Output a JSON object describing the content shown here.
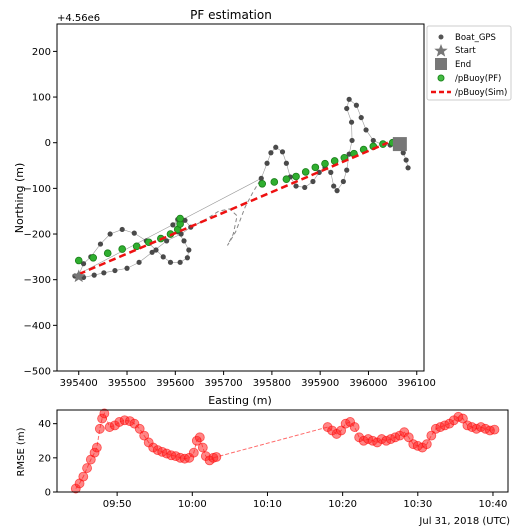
{
  "chart_data": [
    {
      "type": "scatter",
      "title": "PF estimation",
      "xlabel": "Easting (m)",
      "ylabel": "Northing (m)",
      "offset_label": "+4.56e6",
      "xlim": [
        395355,
        396115
      ],
      "ylim": [
        -500,
        260
      ],
      "x_ticks": [
        "395400",
        "395500",
        "395600",
        "395700",
        "395800",
        "395900",
        "396000",
        "396100"
      ],
      "x_tick_values": [
        395400,
        395500,
        395600,
        395700,
        395800,
        395900,
        396000,
        396100
      ],
      "y_ticks": [
        "200",
        "100",
        "0",
        "−100",
        "−200",
        "−300",
        "−400",
        "−500"
      ],
      "y_tick_values": [
        200,
        100,
        0,
        -100,
        -200,
        -300,
        -400,
        -500
      ],
      "legend_position": "outside-right",
      "legend": [
        {
          "label": "Boat_GPS",
          "marker": "dot",
          "color": "#555555"
        },
        {
          "label": "Start",
          "marker": "star",
          "color": "#777777"
        },
        {
          "label": "End",
          "marker": "square",
          "color": "#777777"
        },
        {
          "label": "/pBuoy(PF)",
          "marker": "ring",
          "color": "#22aa22"
        },
        {
          "label": "/pBuoy(Sim)",
          "marker": "dashed-line",
          "color": "#ee1111"
        }
      ],
      "series": [
        {
          "name": "Boat_GPS",
          "color": "#4a4a4a",
          "points": [
            [
              395400,
              -290
            ],
            [
              395410,
              -265
            ],
            [
              395425,
              -250
            ],
            [
              395445,
              -222
            ],
            [
              395465,
              -200
            ],
            [
              395490,
              -190
            ],
            [
              395515,
              -198
            ],
            [
              395540,
              -215
            ],
            [
              395560,
              -235
            ],
            [
              395575,
              -250
            ],
            [
              395590,
              -262
            ],
            [
              395610,
              -262
            ],
            [
              395625,
              -252
            ],
            [
              395628,
              -235
            ],
            [
              395618,
              -215
            ],
            [
              395605,
              -195
            ],
            [
              395595,
              -180
            ],
            [
              395605,
              -168
            ],
            [
              395620,
              -170
            ],
            [
              395632,
              -185
            ],
            [
              395612,
              -200
            ],
            [
              395582,
              -215
            ],
            [
              395552,
              -240
            ],
            [
              395525,
              -262
            ],
            [
              395500,
              -275
            ],
            [
              395475,
              -280
            ],
            [
              395452,
              -285
            ],
            [
              395432,
              -290
            ],
            [
              395410,
              -295
            ],
            [
              395392,
              -292
            ],
            [
              395778,
              -78
            ],
            [
              395790,
              -45
            ],
            [
              395798,
              -22
            ],
            [
              395808,
              -10
            ],
            [
              395822,
              -20
            ],
            [
              395830,
              -45
            ],
            [
              395838,
              -75
            ],
            [
              395850,
              -95
            ],
            [
              395868,
              -98
            ],
            [
              395885,
              -85
            ],
            [
              395898,
              -65
            ],
            [
              395910,
              -55
            ],
            [
              395922,
              -65
            ],
            [
              395928,
              -95
            ],
            [
              395935,
              -105
            ],
            [
              395948,
              -85
            ],
            [
              395955,
              -60
            ],
            [
              395960,
              -25
            ],
            [
              395966,
              5
            ],
            [
              395965,
              45
            ],
            [
              395955,
              75
            ],
            [
              395960,
              95
            ],
            [
              395975,
              82
            ],
            [
              395985,
              55
            ],
            [
              395995,
              28
            ],
            [
              396010,
              5
            ],
            [
              396030,
              -5
            ],
            [
              396045,
              -5
            ],
            [
              396060,
              -10
            ],
            [
              396072,
              -22
            ],
            [
              396078,
              -38
            ],
            [
              396082,
              -55
            ]
          ]
        },
        {
          "name": "/pBuoy(PF)",
          "color": "#1f9a1f",
          "points": [
            [
              395400,
              -258
            ],
            [
              395430,
              -252
            ],
            [
              395460,
              -242
            ],
            [
              395490,
              -233
            ],
            [
              395520,
              -227
            ],
            [
              395545,
              -218
            ],
            [
              395570,
              -210
            ],
            [
              395590,
              -200
            ],
            [
              395605,
              -190
            ],
            [
              395610,
              -178
            ],
            [
              395610,
              -166
            ],
            [
              395780,
              -90
            ],
            [
              395805,
              -86
            ],
            [
              395830,
              -80
            ],
            [
              395850,
              -74
            ],
            [
              395870,
              -64
            ],
            [
              395890,
              -54
            ],
            [
              395910,
              -46
            ],
            [
              395930,
              -40
            ],
            [
              395950,
              -33
            ],
            [
              395970,
              -24
            ],
            [
              395990,
              -15
            ],
            [
              396010,
              -8
            ],
            [
              396030,
              -3
            ],
            [
              396050,
              0
            ]
          ]
        },
        {
          "name": "/pBuoy(Sim)",
          "color": "#ee1111",
          "points": [
            [
              395400,
              -288
            ],
            [
              396040,
              0
            ]
          ]
        }
      ],
      "start": [
        395400,
        -293
      ],
      "end": [
        396065,
        -3
      ]
    },
    {
      "type": "scatter",
      "ylabel": "RMSE (m)",
      "x_ticks": [
        "09:50",
        "10:00",
        "10:10",
        "10:20",
        "10:30",
        "10:40"
      ],
      "x_tick_values": [
        590,
        600,
        610,
        620,
        630,
        640
      ],
      "y_ticks": [
        "40",
        "20",
        "0"
      ],
      "y_tick_values": [
        40,
        20,
        0
      ],
      "xlim": [
        582,
        642
      ],
      "ylim": [
        0,
        48
      ],
      "date_label": "Jul 31, 2018 (UTC)",
      "series": [
        {
          "name": "RMSE",
          "color": "#ff2222",
          "points": [
            [
              584.5,
              2
            ],
            [
              585,
              5
            ],
            [
              585.5,
              9
            ],
            [
              586,
              14
            ],
            [
              586.5,
              19
            ],
            [
              587,
              23
            ],
            [
              587.3,
              26
            ],
            [
              587.7,
              37
            ],
            [
              588,
              43
            ],
            [
              588.3,
              46
            ],
            [
              589,
              38
            ],
            [
              589.7,
              39
            ],
            [
              590.3,
              41
            ],
            [
              591,
              42
            ],
            [
              591.7,
              41.5
            ],
            [
              592.3,
              40
            ],
            [
              593,
              37
            ],
            [
              593.6,
              33
            ],
            [
              594.2,
              29
            ],
            [
              594.8,
              26
            ],
            [
              595.4,
              24.5
            ],
            [
              596,
              23.5
            ],
            [
              596.6,
              22.5
            ],
            [
              597.2,
              21.5
            ],
            [
              597.8,
              21
            ],
            [
              598.4,
              20
            ],
            [
              599,
              19.5
            ],
            [
              599.6,
              20
            ],
            [
              600.2,
              23
            ],
            [
              600.6,
              30
            ],
            [
              601,
              32
            ],
            [
              601.4,
              26
            ],
            [
              601.8,
              21
            ],
            [
              602.3,
              18.5
            ],
            [
              602.8,
              20
            ],
            [
              603.2,
              20.5
            ],
            [
              618,
              38
            ],
            [
              618.6,
              36
            ],
            [
              619.2,
              34
            ],
            [
              619.8,
              36
            ],
            [
              620.4,
              40
            ],
            [
              621,
              41
            ],
            [
              621.6,
              38
            ],
            [
              622.2,
              32
            ],
            [
              622.8,
              30
            ],
            [
              623.4,
              31
            ],
            [
              624,
              30
            ],
            [
              624.6,
              29
            ],
            [
              625.2,
              31
            ],
            [
              625.8,
              30
            ],
            [
              626.4,
              31
            ],
            [
              627,
              32
            ],
            [
              627.6,
              33
            ],
            [
              628.2,
              35
            ],
            [
              628.8,
              32
            ],
            [
              629.4,
              28
            ],
            [
              630,
              27
            ],
            [
              630.6,
              26
            ],
            [
              631.2,
              28
            ],
            [
              631.8,
              33
            ],
            [
              632.4,
              37
            ],
            [
              633,
              38
            ],
            [
              633.6,
              39
            ],
            [
              634.2,
              40
            ],
            [
              634.8,
              42
            ],
            [
              635.4,
              44
            ],
            [
              636,
              43
            ],
            [
              636.6,
              39
            ],
            [
              637.2,
              38
            ],
            [
              637.8,
              37
            ],
            [
              638.4,
              38
            ],
            [
              639,
              37
            ],
            [
              639.6,
              36
            ],
            [
              640.2,
              36.5
            ]
          ]
        }
      ]
    }
  ]
}
